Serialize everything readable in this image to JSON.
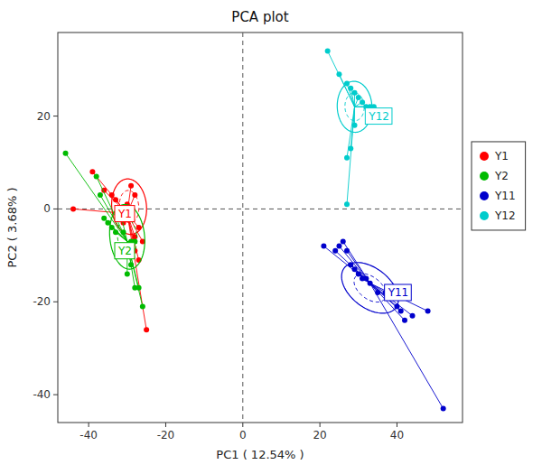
{
  "chart_data": {
    "type": "scatter",
    "title": "PCA plot",
    "xlabel": "PC1 ( 12.54% )",
    "ylabel": "PC2 ( 3.68% )",
    "xlim": [
      -48,
      57
    ],
    "ylim": [
      -46,
      38
    ],
    "xticks": [
      -40,
      -20,
      0,
      20,
      40
    ],
    "yticks": [
      -40,
      -20,
      0,
      20
    ],
    "grid": false,
    "legend": "right",
    "reference_lines": {
      "x": [
        0
      ],
      "y": [
        0
      ]
    },
    "series": [
      {
        "name": "Y1",
        "color": "#FF0000",
        "x": [
          -44,
          -39,
          -36,
          -34,
          -33,
          -32,
          -31,
          -31,
          -30,
          -30,
          -29,
          -28,
          -28,
          -28,
          -27,
          -27,
          -26,
          -25
        ],
        "values": [
          0,
          8,
          4,
          3,
          2,
          0,
          -1,
          -3,
          1,
          -2,
          5,
          3,
          -6,
          -9,
          -4,
          -11,
          -7,
          -26
        ],
        "center": [
          -30,
          -1
        ],
        "label_pos": [
          -33,
          -1
        ],
        "ellipse_center": [
          -29.5,
          0.5
        ],
        "ellipse_width": 9,
        "ellipse_height": 12,
        "ellipse_angle": 8,
        "ellipse2_width": 5,
        "ellipse2_height": 7,
        "ellipse2_angle": 8
      },
      {
        "name": "Y2",
        "color": "#00BB00",
        "x": [
          -46,
          -38,
          -37,
          -36,
          -35,
          -34,
          -33,
          -32,
          -31,
          -30,
          -30,
          -29,
          -29,
          -28,
          -28,
          -27,
          -26
        ],
        "values": [
          12,
          7,
          3,
          -2,
          -3,
          -4,
          -5,
          0,
          -5,
          -8,
          -14,
          -7,
          -12,
          -7,
          -17,
          -17,
          -21
        ],
        "center": [
          -30,
          -7
        ],
        "label_pos": [
          -33,
          -9
        ],
        "ellipse_center": [
          -30,
          -6
        ],
        "ellipse_width": 9,
        "ellipse_height": 14,
        "ellipse_angle": 8,
        "ellipse2_width": 5,
        "ellipse2_height": 8,
        "ellipse2_angle": 8
      },
      {
        "name": "Y11",
        "color": "#0000CC",
        "x": [
          21,
          24,
          25,
          26,
          27,
          28,
          29,
          30,
          31,
          32,
          33,
          35,
          37,
          40,
          41,
          42,
          44,
          48,
          52
        ],
        "values": [
          -8,
          -9,
          -8,
          -7,
          -9,
          -12,
          -13,
          -14,
          -15,
          -15,
          -16,
          -18,
          -18,
          -21,
          -22,
          -24,
          -23,
          -22,
          -43
        ],
        "center": [
          33,
          -16
        ],
        "label_pos": [
          37,
          -18
        ],
        "ellipse_center": [
          33,
          -17
        ],
        "ellipse_width": 16,
        "ellipse_height": 9,
        "ellipse_angle": -28,
        "ellipse2_width": 9,
        "ellipse2_height": 5,
        "ellipse2_angle": -28
      },
      {
        "name": "Y12",
        "color": "#00CCCC",
        "x": [
          22,
          25,
          27,
          28,
          29,
          30,
          31,
          32,
          33,
          34,
          29,
          28,
          27,
          27
        ],
        "values": [
          34,
          29,
          27,
          26,
          25,
          24,
          23,
          22,
          22,
          22,
          18,
          13,
          11,
          1
        ],
        "center": [
          29,
          22
        ],
        "label_pos": [
          32,
          20
        ],
        "ellipse_center": [
          29,
          22
        ],
        "ellipse_width": 9,
        "ellipse_height": 11,
        "ellipse_angle": 5,
        "ellipse2_width": 5,
        "ellipse2_height": 6,
        "ellipse2_angle": 5
      }
    ]
  }
}
